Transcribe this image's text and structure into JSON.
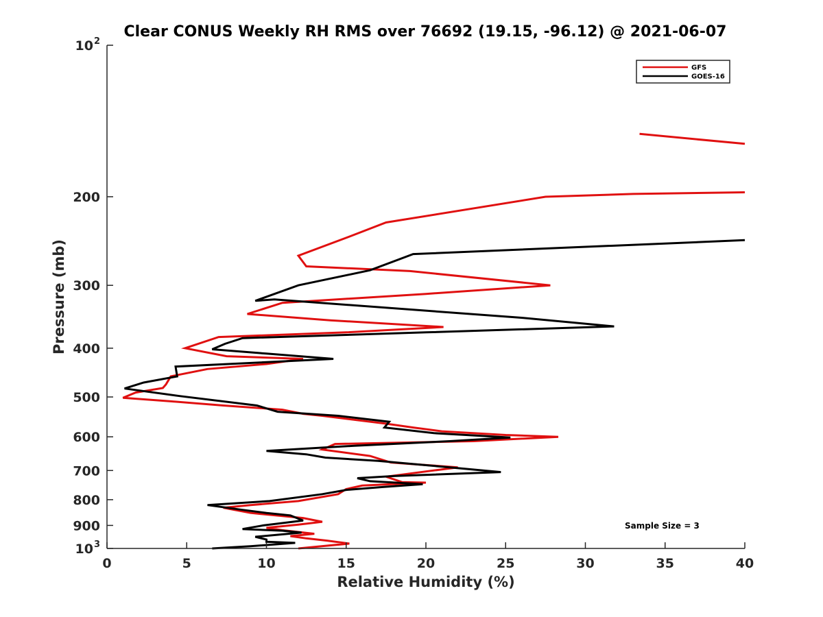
{
  "chart_data": {
    "type": "line",
    "title": "Clear CONUS Weekly RH RMS over 76692 (19.15, -96.12) @ 2021-06-07",
    "xlabel": "Relative Humidity (%)",
    "ylabel": "Pressure (mb)",
    "xlim": [
      0,
      40
    ],
    "ylim": [
      100,
      1000
    ],
    "yscale": "log",
    "y_reversed": true,
    "x_ticks": [
      0,
      5,
      10,
      15,
      20,
      25,
      30,
      35,
      40
    ],
    "y_ticks": [
      {
        "value": 100,
        "label": "10",
        "sup": "2"
      },
      {
        "value": 200,
        "label": "200",
        "sup": ""
      },
      {
        "value": 300,
        "label": "300",
        "sup": ""
      },
      {
        "value": 400,
        "label": "400",
        "sup": ""
      },
      {
        "value": 500,
        "label": "500",
        "sup": ""
      },
      {
        "value": 600,
        "label": "600",
        "sup": ""
      },
      {
        "value": 700,
        "label": "700",
        "sup": ""
      },
      {
        "value": 800,
        "label": "800",
        "sup": ""
      },
      {
        "value": 900,
        "label": "900",
        "sup": ""
      },
      {
        "value": 1000,
        "label": "10",
        "sup": "3"
      }
    ],
    "legend_position": "top-right",
    "annotation": "Sample Size = 3",
    "series": [
      {
        "name": "GFS",
        "color": "#e01010",
        "segments": [
          [
            [
              33.4,
              150
            ],
            [
              40,
              157
            ]
          ],
          [
            [
              40,
              196
            ],
            [
              33,
              197.5
            ],
            [
              27.5,
              200
            ],
            [
              17.5,
              225
            ],
            [
              15.2,
              240
            ],
            [
              12.0,
              262
            ],
            [
              12.5,
              275
            ],
            [
              19,
              281
            ],
            [
              27.8,
              300
            ],
            [
              20,
              312
            ],
            [
              11,
              325
            ],
            [
              8.8,
              342
            ],
            [
              14,
              352
            ],
            [
              21.1,
              363
            ],
            [
              15,
              372
            ],
            [
              7,
              380
            ],
            [
              4.9,
              400
            ],
            [
              7.5,
              415
            ],
            [
              12.3,
              420
            ],
            [
              10,
              430
            ],
            [
              6.3,
              440
            ],
            [
              4,
              455
            ],
            [
              3.7,
              472
            ],
            [
              3.5,
              480
            ],
            [
              1.8,
              490
            ],
            [
              1.0,
              502
            ],
            [
              4,
              510
            ],
            [
              7.3,
              520
            ],
            [
              11,
              530
            ],
            [
              12.3,
              540
            ],
            [
              13.5,
              545
            ],
            [
              17.5,
              565
            ],
            [
              19.2,
              575
            ],
            [
              21,
              585
            ],
            [
              25,
              595
            ],
            [
              28.3,
              600
            ],
            [
              23,
              612
            ],
            [
              14.3,
              620
            ],
            [
              13.5,
              636
            ],
            [
              16.5,
              655
            ],
            [
              17.8,
              675
            ],
            [
              22,
              690
            ],
            [
              17.5,
              720
            ],
            [
              18.5,
              738
            ],
            [
              20,
              740
            ],
            [
              16,
              750
            ],
            [
              15,
              762
            ],
            [
              14.5,
              780
            ],
            [
              12,
              805
            ],
            [
              9,
              820
            ],
            [
              7.3,
              830
            ],
            [
              9,
              850
            ],
            [
              12.3,
              870
            ],
            [
              13.5,
              885
            ],
            [
              12,
              897
            ],
            [
              10,
              910
            ],
            [
              11,
              920
            ],
            [
              13,
              935
            ],
            [
              11.5,
              945
            ],
            [
              12.5,
              955
            ],
            [
              13.8,
              965
            ],
            [
              15.2,
              978
            ],
            [
              12,
              1000
            ]
          ]
        ]
      },
      {
        "name": "GOES-16",
        "color": "#000000",
        "segments": [
          [
            [
              40,
              244
            ],
            [
              19.2,
              260
            ],
            [
              16.5,
              280
            ],
            [
              12,
              300
            ],
            [
              9.3,
              322
            ],
            [
              10.5,
              320
            ],
            [
              26,
              348
            ],
            [
              31.8,
              362
            ],
            [
              20,
              372
            ],
            [
              8.5,
              382
            ],
            [
              7.4,
              392
            ],
            [
              6.6,
              402
            ],
            [
              10,
              410
            ],
            [
              14.2,
              420
            ],
            [
              7.6,
              430
            ],
            [
              4.3,
              435
            ],
            [
              4.4,
              455
            ],
            [
              2.3,
              468
            ],
            [
              1.1,
              481
            ],
            [
              4.6,
              498
            ],
            [
              9.4,
              520
            ],
            [
              10.7,
              535
            ],
            [
              14.5,
              545
            ],
            [
              17.7,
              560
            ],
            [
              17.4,
              575
            ],
            [
              20.5,
              590
            ],
            [
              25.3,
              602
            ],
            [
              21.5,
              612
            ],
            [
              15.5,
              625
            ],
            [
              10,
              640
            ],
            [
              12.5,
              650
            ],
            [
              13.7,
              660
            ],
            [
              17,
              670
            ],
            [
              21.5,
              690
            ],
            [
              24.7,
              705
            ],
            [
              18,
              718
            ],
            [
              15.7,
              725
            ],
            [
              16.5,
              735
            ],
            [
              19.8,
              745
            ],
            [
              17.3,
              755
            ],
            [
              15,
              765
            ],
            [
              13.5,
              780
            ],
            [
              10.2,
              805
            ],
            [
              6.3,
              820
            ],
            [
              8.5,
              838
            ],
            [
              10,
              850
            ],
            [
              11.5,
              860
            ],
            [
              12.3,
              880
            ],
            [
              9.8,
              900
            ],
            [
              8.5,
              915
            ],
            [
              11,
              922
            ],
            [
              12.2,
              930
            ],
            [
              9.3,
              948
            ],
            [
              10,
              960
            ],
            [
              10,
              970
            ],
            [
              11.8,
              975
            ],
            [
              9,
              990
            ],
            [
              6.6,
              1000
            ]
          ]
        ]
      }
    ]
  }
}
